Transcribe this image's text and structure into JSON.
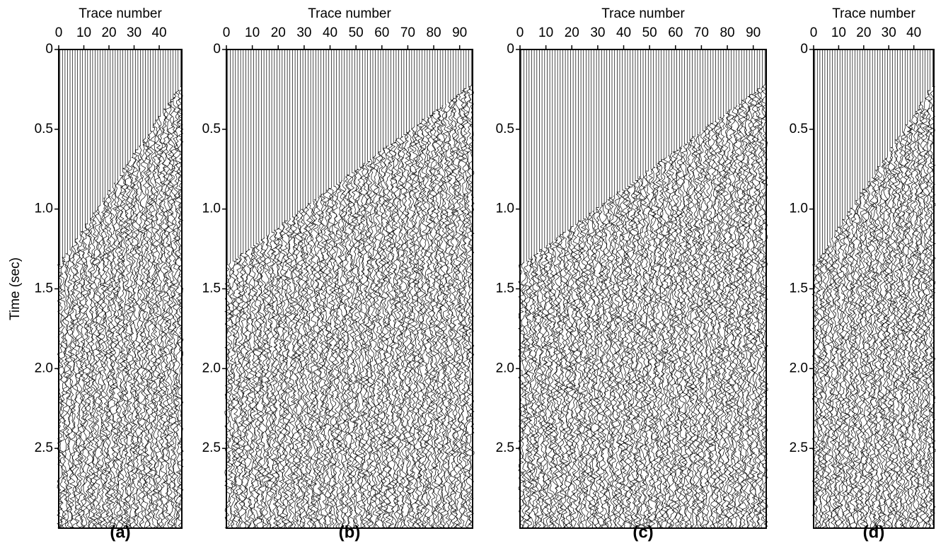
{
  "chart_data": [
    {
      "type": "seismic",
      "xlabel": "Trace number",
      "ylabel": "Time (sec)",
      "panel_label": "(a)",
      "xlim": [
        0,
        49
      ],
      "xticks": [
        0,
        10,
        20,
        30,
        40
      ],
      "ylim": [
        0,
        3
      ],
      "yticks": [
        0,
        0.5,
        {
          "value": 1,
          "label": "1.0"
        },
        1.5,
        {
          "value": 2,
          "label": "2.0"
        },
        2.5
      ]
    },
    {
      "type": "seismic",
      "xlabel": "Trace number",
      "panel_label": "(b)",
      "xlim": [
        0,
        95
      ],
      "xticks": [
        0,
        10,
        20,
        30,
        40,
        50,
        60,
        70,
        80,
        90
      ],
      "ylim": [
        0,
        3
      ],
      "yticks": [
        0,
        0.5,
        {
          "value": 1,
          "label": "1.0"
        },
        1.5,
        {
          "value": 2,
          "label": "2.0"
        },
        2.5
      ]
    },
    {
      "type": "seismic",
      "xlabel": "Trace number",
      "panel_label": "(c)",
      "xlim": [
        0,
        95
      ],
      "xticks": [
        0,
        10,
        20,
        30,
        40,
        50,
        60,
        70,
        80,
        90
      ],
      "ylim": [
        0,
        3
      ],
      "yticks": [
        0,
        0.5,
        {
          "value": 1,
          "label": "1.0"
        },
        1.5,
        {
          "value": 2,
          "label": "2.0"
        },
        2.5
      ]
    },
    {
      "type": "seismic",
      "xlabel": "Trace number",
      "panel_label": "(d)",
      "xlim": [
        0,
        48
      ],
      "xticks": [
        0,
        10,
        20,
        30,
        40
      ],
      "ylim": [
        0,
        3
      ],
      "yticks": [
        0,
        0.5,
        {
          "value": 1,
          "label": "1.0"
        },
        1.5,
        {
          "value": 2,
          "label": "2.0"
        },
        2.5
      ]
    }
  ]
}
